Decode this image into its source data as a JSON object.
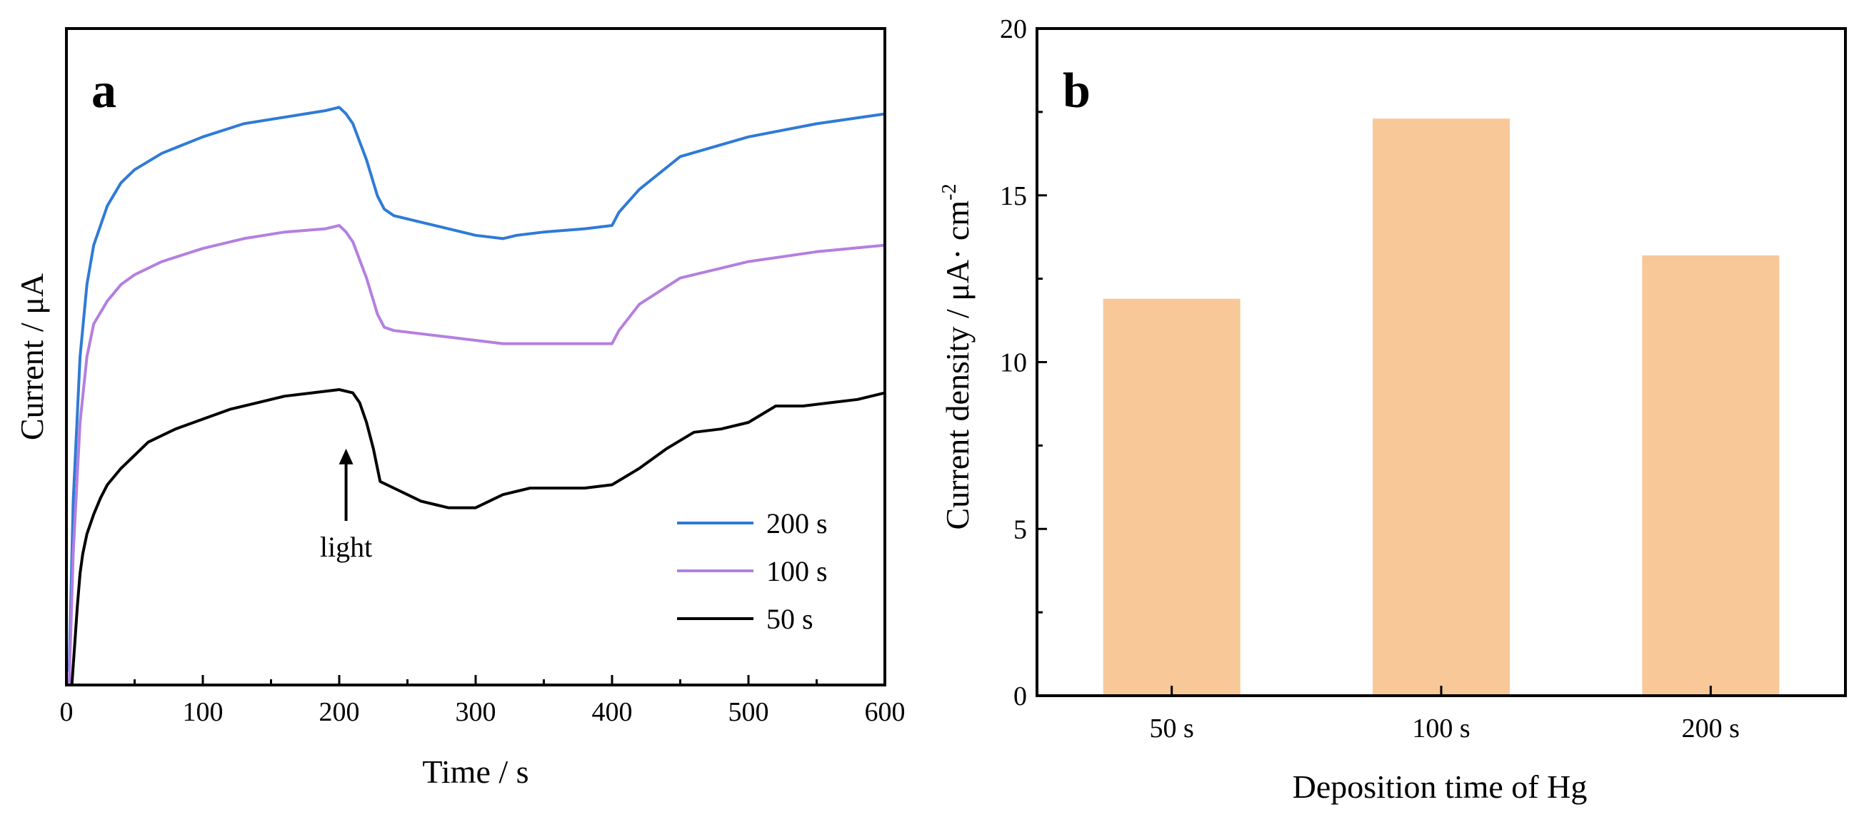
{
  "chart_data": [
    {
      "panel": "a",
      "type": "line",
      "title": "",
      "xlabel": "Time / s",
      "ylabel": "Current / μA",
      "xlim": [
        0,
        600
      ],
      "ylim": [
        0,
        100
      ],
      "xticks": [
        0,
        100,
        200,
        300,
        400,
        500,
        600
      ],
      "y_tick_labels_shown": false,
      "legend_position": "lower-right",
      "annotation": {
        "text": "light",
        "x": 205,
        "arrow_tip_y": 36,
        "arrow_tail_y": 25
      },
      "series": [
        {
          "name": "200 s",
          "color": "#2f7ad6",
          "x": [
            2,
            5,
            10,
            15,
            20,
            30,
            40,
            50,
            70,
            100,
            130,
            160,
            190,
            200,
            205,
            210,
            220,
            228,
            233,
            240,
            260,
            280,
            300,
            320,
            330,
            350,
            380,
            400,
            405,
            420,
            450,
            500,
            550,
            600
          ],
          "y": [
            2,
            28,
            50,
            61,
            67,
            73,
            76.5,
            78.5,
            81,
            83.5,
            85.5,
            86.5,
            87.5,
            88,
            87,
            85.5,
            80,
            74.5,
            72.5,
            71.5,
            70.5,
            69.5,
            68.5,
            68,
            68.5,
            69,
            69.5,
            70,
            72,
            75.5,
            80.5,
            83.5,
            85.5,
            87
          ]
        },
        {
          "name": "100 s",
          "color": "#b47fe0",
          "x": [
            2,
            5,
            10,
            15,
            20,
            30,
            40,
            50,
            70,
            100,
            130,
            160,
            190,
            200,
            205,
            210,
            220,
            228,
            233,
            240,
            260,
            280,
            300,
            320,
            330,
            350,
            380,
            400,
            405,
            420,
            450,
            500,
            550,
            600
          ],
          "y": [
            0,
            20,
            40,
            50,
            55,
            58.5,
            61,
            62.5,
            64.5,
            66.5,
            68,
            69,
            69.5,
            70,
            69,
            67.5,
            62,
            56.5,
            54.5,
            54,
            53.5,
            53,
            52.5,
            52,
            52,
            52,
            52,
            52,
            54,
            58,
            62,
            64.5,
            66,
            67
          ]
        },
        {
          "name": "50 s",
          "color": "#000000",
          "x": [
            4,
            6,
            8,
            10,
            12,
            15,
            20,
            25,
            30,
            40,
            50,
            60,
            80,
            100,
            120,
            140,
            160,
            180,
            200,
            210,
            215,
            220,
            225,
            230,
            240,
            250,
            260,
            270,
            280,
            300,
            320,
            340,
            360,
            380,
            400,
            420,
            440,
            460,
            480,
            500,
            520,
            540,
            560,
            580,
            600
          ],
          "y": [
            0,
            6,
            12,
            17,
            20,
            23,
            26,
            28.5,
            30.5,
            33,
            35,
            37,
            39,
            40.5,
            42,
            43,
            44,
            44.5,
            45,
            44.5,
            43,
            40,
            36,
            31,
            30,
            29,
            28,
            27.5,
            27,
            27,
            29,
            30,
            30,
            30,
            30.5,
            33,
            36,
            38.5,
            39,
            40,
            42.5,
            42.5,
            43,
            43.5,
            44.5
          ]
        }
      ]
    },
    {
      "panel": "b",
      "type": "bar",
      "title": "",
      "xlabel": "Deposition time of Hg",
      "ylabel": "Current density / μA· cm",
      "ylabel_superscript": "-2",
      "categories": [
        "50 s",
        "100 s",
        "200 s"
      ],
      "values": [
        11.9,
        17.3,
        13.2
      ],
      "ylim": [
        0,
        20
      ],
      "yticks": [
        0,
        5,
        10,
        15,
        20
      ],
      "bar_color": "#f9c898"
    }
  ]
}
